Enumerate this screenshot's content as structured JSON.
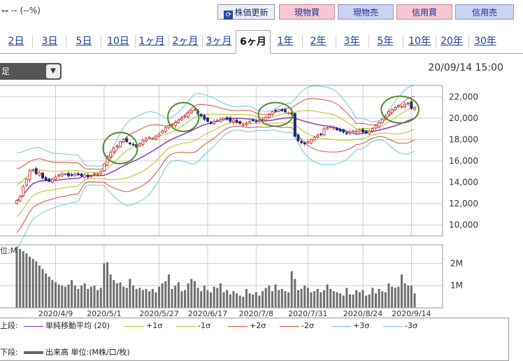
{
  "header": {
    "symbol": "--",
    "change": "-- (--%)"
  },
  "toolbar": {
    "refresh": {
      "label": "株価更新",
      "icon": "refresh-icon"
    },
    "buttons": [
      {
        "label": "現物買",
        "kind": "pink"
      },
      {
        "label": "現物売",
        "kind": "blue"
      },
      {
        "label": "信用買",
        "kind": "pink"
      },
      {
        "label": "信用売",
        "kind": "blue"
      }
    ]
  },
  "tabs": [
    {
      "label": "2日"
    },
    {
      "label": "3日"
    },
    {
      "label": "5日"
    },
    {
      "label": "10日"
    },
    {
      "label": "1ヶ月"
    },
    {
      "label": "2ヶ月"
    },
    {
      "label": "3ヶ月"
    },
    {
      "label": "6ヶ月",
      "active": true
    },
    {
      "label": "1年"
    },
    {
      "label": "2年"
    },
    {
      "label": "3年"
    },
    {
      "label": "5年"
    },
    {
      "label": "10年"
    },
    {
      "label": "20年"
    },
    {
      "label": "30年"
    }
  ],
  "dropdown": {
    "value": "足"
  },
  "timestamp": "20/09/14 15:00",
  "chart_data": {
    "type": "candlestick",
    "price_axis": {
      "range": [
        9000,
        23000
      ],
      "ticks": [
        10000,
        12000,
        14000,
        16000,
        18000,
        20000,
        22000
      ],
      "tick_labels": [
        "10,000",
        "12,000",
        "14,000",
        "16,000",
        "18,000",
        "20,000",
        "22,000"
      ],
      "side": "right"
    },
    "volume_axis": {
      "range": [
        0,
        2800000
      ],
      "ticks": [
        1000000,
        2000000
      ],
      "tick_labels": [
        "1M",
        "2M"
      ],
      "label": "位:M"
    },
    "x_labels": [
      "2020/4/9",
      "2020/5/1",
      "2020/5/27",
      "2020/6/17",
      "2020/7/8",
      "2020/7/31",
      "2020/8/24",
      "2020/9/14"
    ],
    "x_label_index": [
      12,
      27,
      44,
      59,
      74,
      90,
      107,
      122
    ],
    "grid": true,
    "colors": {
      "up": "#d03030",
      "down": "#1c2a6e",
      "sma": "#8a2fb5",
      "s1": "#b5c226",
      "s2": "#d2553a",
      "s3": "#6ac5e8",
      "volume": "#6e6e6e",
      "annotation": "#4e8a2e"
    },
    "close": [
      12300,
      12700,
      13600,
      14300,
      15100,
      15200,
      14800,
      14900,
      14400,
      14200,
      14100,
      14300,
      14500,
      14700,
      14800,
      14800,
      14600,
      14700,
      14800,
      14700,
      14600,
      14700,
      14500,
      14600,
      14800,
      14800,
      15000,
      15700,
      16400,
      16800,
      17200,
      17400,
      17800,
      18000,
      17800,
      17600,
      17500,
      17300,
      17600,
      17900,
      18100,
      18200,
      18100,
      18300,
      18500,
      18800,
      19100,
      19300,
      19400,
      19600,
      19800,
      20000,
      20200,
      20500,
      20700,
      20800,
      20400,
      20200,
      19900,
      19700,
      19500,
      19700,
      19800,
      19900,
      20000,
      19900,
      19700,
      19800,
      19600,
      19500,
      19400,
      19500,
      19700,
      19800,
      19700,
      19800,
      19900,
      20100,
      20300,
      20600,
      20700,
      20800,
      20700,
      20600,
      20500,
      20400,
      18300,
      17900,
      17700,
      17600,
      17800,
      18000,
      18200,
      18400,
      18500,
      19000,
      19100,
      19200,
      19100,
      18900,
      18800,
      18700,
      18600,
      18700,
      18800,
      18800,
      18900,
      18700,
      18600,
      18800,
      19000,
      19300,
      19600,
      19900,
      20200,
      20600,
      20800,
      21000,
      21200,
      21100,
      21300,
      21400,
      20900,
      21000
    ],
    "volume": [
      2750000,
      2650000,
      2550000,
      2450000,
      2300000,
      2200000,
      2100000,
      1900000,
      1750000,
      1550000,
      1400000,
      1250000,
      1150000,
      1050000,
      1000000,
      950000,
      1050000,
      1250000,
      1000000,
      850000,
      1000000,
      1100000,
      850000,
      950000,
      1000000,
      800000,
      900000,
      2000000,
      2050000,
      1500000,
      1250000,
      1100000,
      1150000,
      950000,
      900000,
      1300000,
      1000000,
      850000,
      900000,
      800000,
      850000,
      750000,
      850000,
      700000,
      950000,
      1100000,
      1200000,
      1500000,
      850000,
      1000000,
      1150000,
      750000,
      800000,
      1100000,
      1300000,
      1200000,
      900000,
      750000,
      1000000,
      800000,
      700000,
      950000,
      900000,
      1100000,
      700000,
      800000,
      600000,
      750000,
      650000,
      550000,
      500000,
      850000,
      650000,
      600000,
      700000,
      550000,
      750000,
      900000,
      1000000,
      750000,
      1050000,
      800000,
      850000,
      750000,
      700000,
      1650000,
      1300000,
      800000,
      850000,
      1000000,
      900000,
      700000,
      750000,
      850000,
      700000,
      800000,
      1050000,
      850000,
      750000,
      700000,
      650000,
      550000,
      900000,
      600000,
      600000,
      800000,
      700000,
      800000,
      550000,
      600000,
      900000,
      650000,
      850000,
      750000,
      700000,
      1100000,
      950000,
      900000,
      950000,
      1500000,
      1100000,
      1000000,
      1000000,
      650000
    ]
  },
  "legend": {
    "upper_prefix": "上段:",
    "lower_prefix": "下段:",
    "items": [
      {
        "label": "単純移動平均 (20)",
        "color": "#8a2fb5"
      },
      {
        "label": "+1σ",
        "color": "#b5c226"
      },
      {
        "label": "-1σ",
        "color": "#b5c226"
      },
      {
        "label": "+2σ",
        "color": "#d2553a"
      },
      {
        "label": "-2σ",
        "color": "#d2553a"
      },
      {
        "label": "+3σ",
        "color": "#6ac5e8"
      },
      {
        "label": "-3σ",
        "color": "#6ac5e8"
      }
    ],
    "volume_label": "出来高 単位:(M株/口/枚)"
  }
}
